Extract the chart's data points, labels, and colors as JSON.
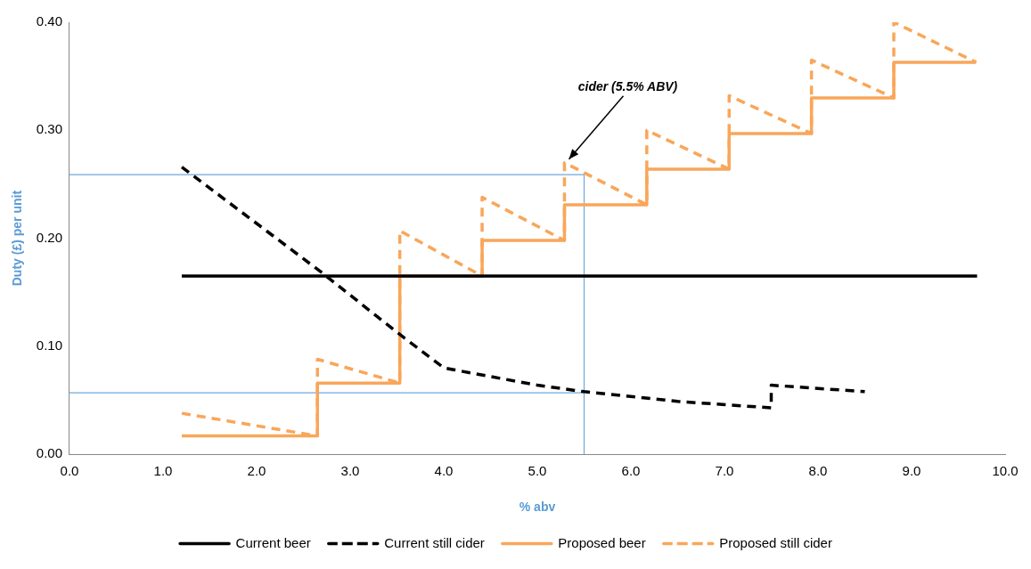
{
  "chart_data": {
    "type": "line",
    "xlabel": "% abv",
    "ylabel": "Duty (£) per unit",
    "xlim": [
      0,
      10
    ],
    "xticks": [
      {
        "value": 0,
        "label": "0.0"
      },
      {
        "value": 1,
        "label": "1.0"
      },
      {
        "value": 2,
        "label": "2.0"
      },
      {
        "value": 3,
        "label": "3.0"
      },
      {
        "value": 4,
        "label": "4.0"
      },
      {
        "value": 5,
        "label": "5.0"
      },
      {
        "value": 6,
        "label": "6.0"
      },
      {
        "value": 7,
        "label": "7.0"
      },
      {
        "value": 8,
        "label": "8.0"
      },
      {
        "value": 9,
        "label": "9.0"
      },
      {
        "value": 10,
        "label": "10.0"
      }
    ],
    "ylim": [
      0,
      0.4
    ],
    "yticks": [
      {
        "value": 0,
        "label": "0.00"
      },
      {
        "value": 0.1,
        "label": "0.10"
      },
      {
        "value": 0.2,
        "label": "0.20"
      },
      {
        "value": 0.3,
        "label": "0.30"
      },
      {
        "value": 0.4,
        "label": "0.40"
      }
    ],
    "grid": false,
    "legend": "bottom",
    "marker": "none",
    "series": [
      {
        "name": "Current beer",
        "color": "#000000",
        "line_style": "solid",
        "x": [
          1.2,
          9.7
        ],
        "values": [
          0.165,
          0.165
        ]
      },
      {
        "name": "Current still cider",
        "color": "#000000",
        "line_style": "dashed",
        "x": [
          1.2,
          2.7,
          3.5,
          4.0,
          5.0,
          5.5,
          6.5,
          7.5,
          7.5,
          8.5
        ],
        "values": [
          0.266,
          0.168,
          0.113,
          0.08,
          0.064,
          0.058,
          0.049,
          0.043,
          0.064,
          0.058
        ]
      },
      {
        "name": "Proposed beer",
        "color": "#f9a65a",
        "line_style": "solid",
        "x": [
          1.2,
          2.65,
          2.65,
          3.53,
          3.53,
          4.41,
          4.41,
          5.29,
          5.29,
          6.17,
          6.17,
          7.05,
          7.05,
          7.93,
          7.93,
          8.81,
          8.81,
          9.69
        ],
        "values": [
          0.017,
          0.017,
          0.066,
          0.066,
          0.165,
          0.165,
          0.198,
          0.198,
          0.231,
          0.231,
          0.264,
          0.264,
          0.297,
          0.297,
          0.33,
          0.33,
          0.363,
          0.363
        ]
      },
      {
        "name": "Proposed still cider",
        "color": "#f9a65a",
        "line_style": "dashed",
        "x": [
          1.2,
          2.65,
          2.65,
          3.53,
          3.53,
          4.41,
          4.41,
          5.29,
          5.29,
          6.17,
          6.17,
          7.05,
          7.05,
          7.93,
          7.93,
          8.81,
          8.81,
          9.69
        ],
        "values": [
          0.038,
          0.017,
          0.088,
          0.066,
          0.207,
          0.165,
          0.238,
          0.198,
          0.27,
          0.231,
          0.3,
          0.264,
          0.332,
          0.297,
          0.365,
          0.33,
          0.4,
          0.363
        ]
      },
      {
        "color": "#6fa8dc",
        "line_style": "solid",
        "x": [
          0,
          5.5,
          5.5
        ],
        "values": [
          0.259,
          0.259,
          0
        ]
      },
      {
        "color": "#6fa8dc",
        "line_style": "solid",
        "x": [
          0,
          5.5
        ],
        "values": [
          0.057,
          0.057
        ]
      }
    ],
    "annotations": [
      {
        "text": "cider (5.5% ABV)",
        "x": 5.3,
        "y": 0.27
      }
    ]
  }
}
